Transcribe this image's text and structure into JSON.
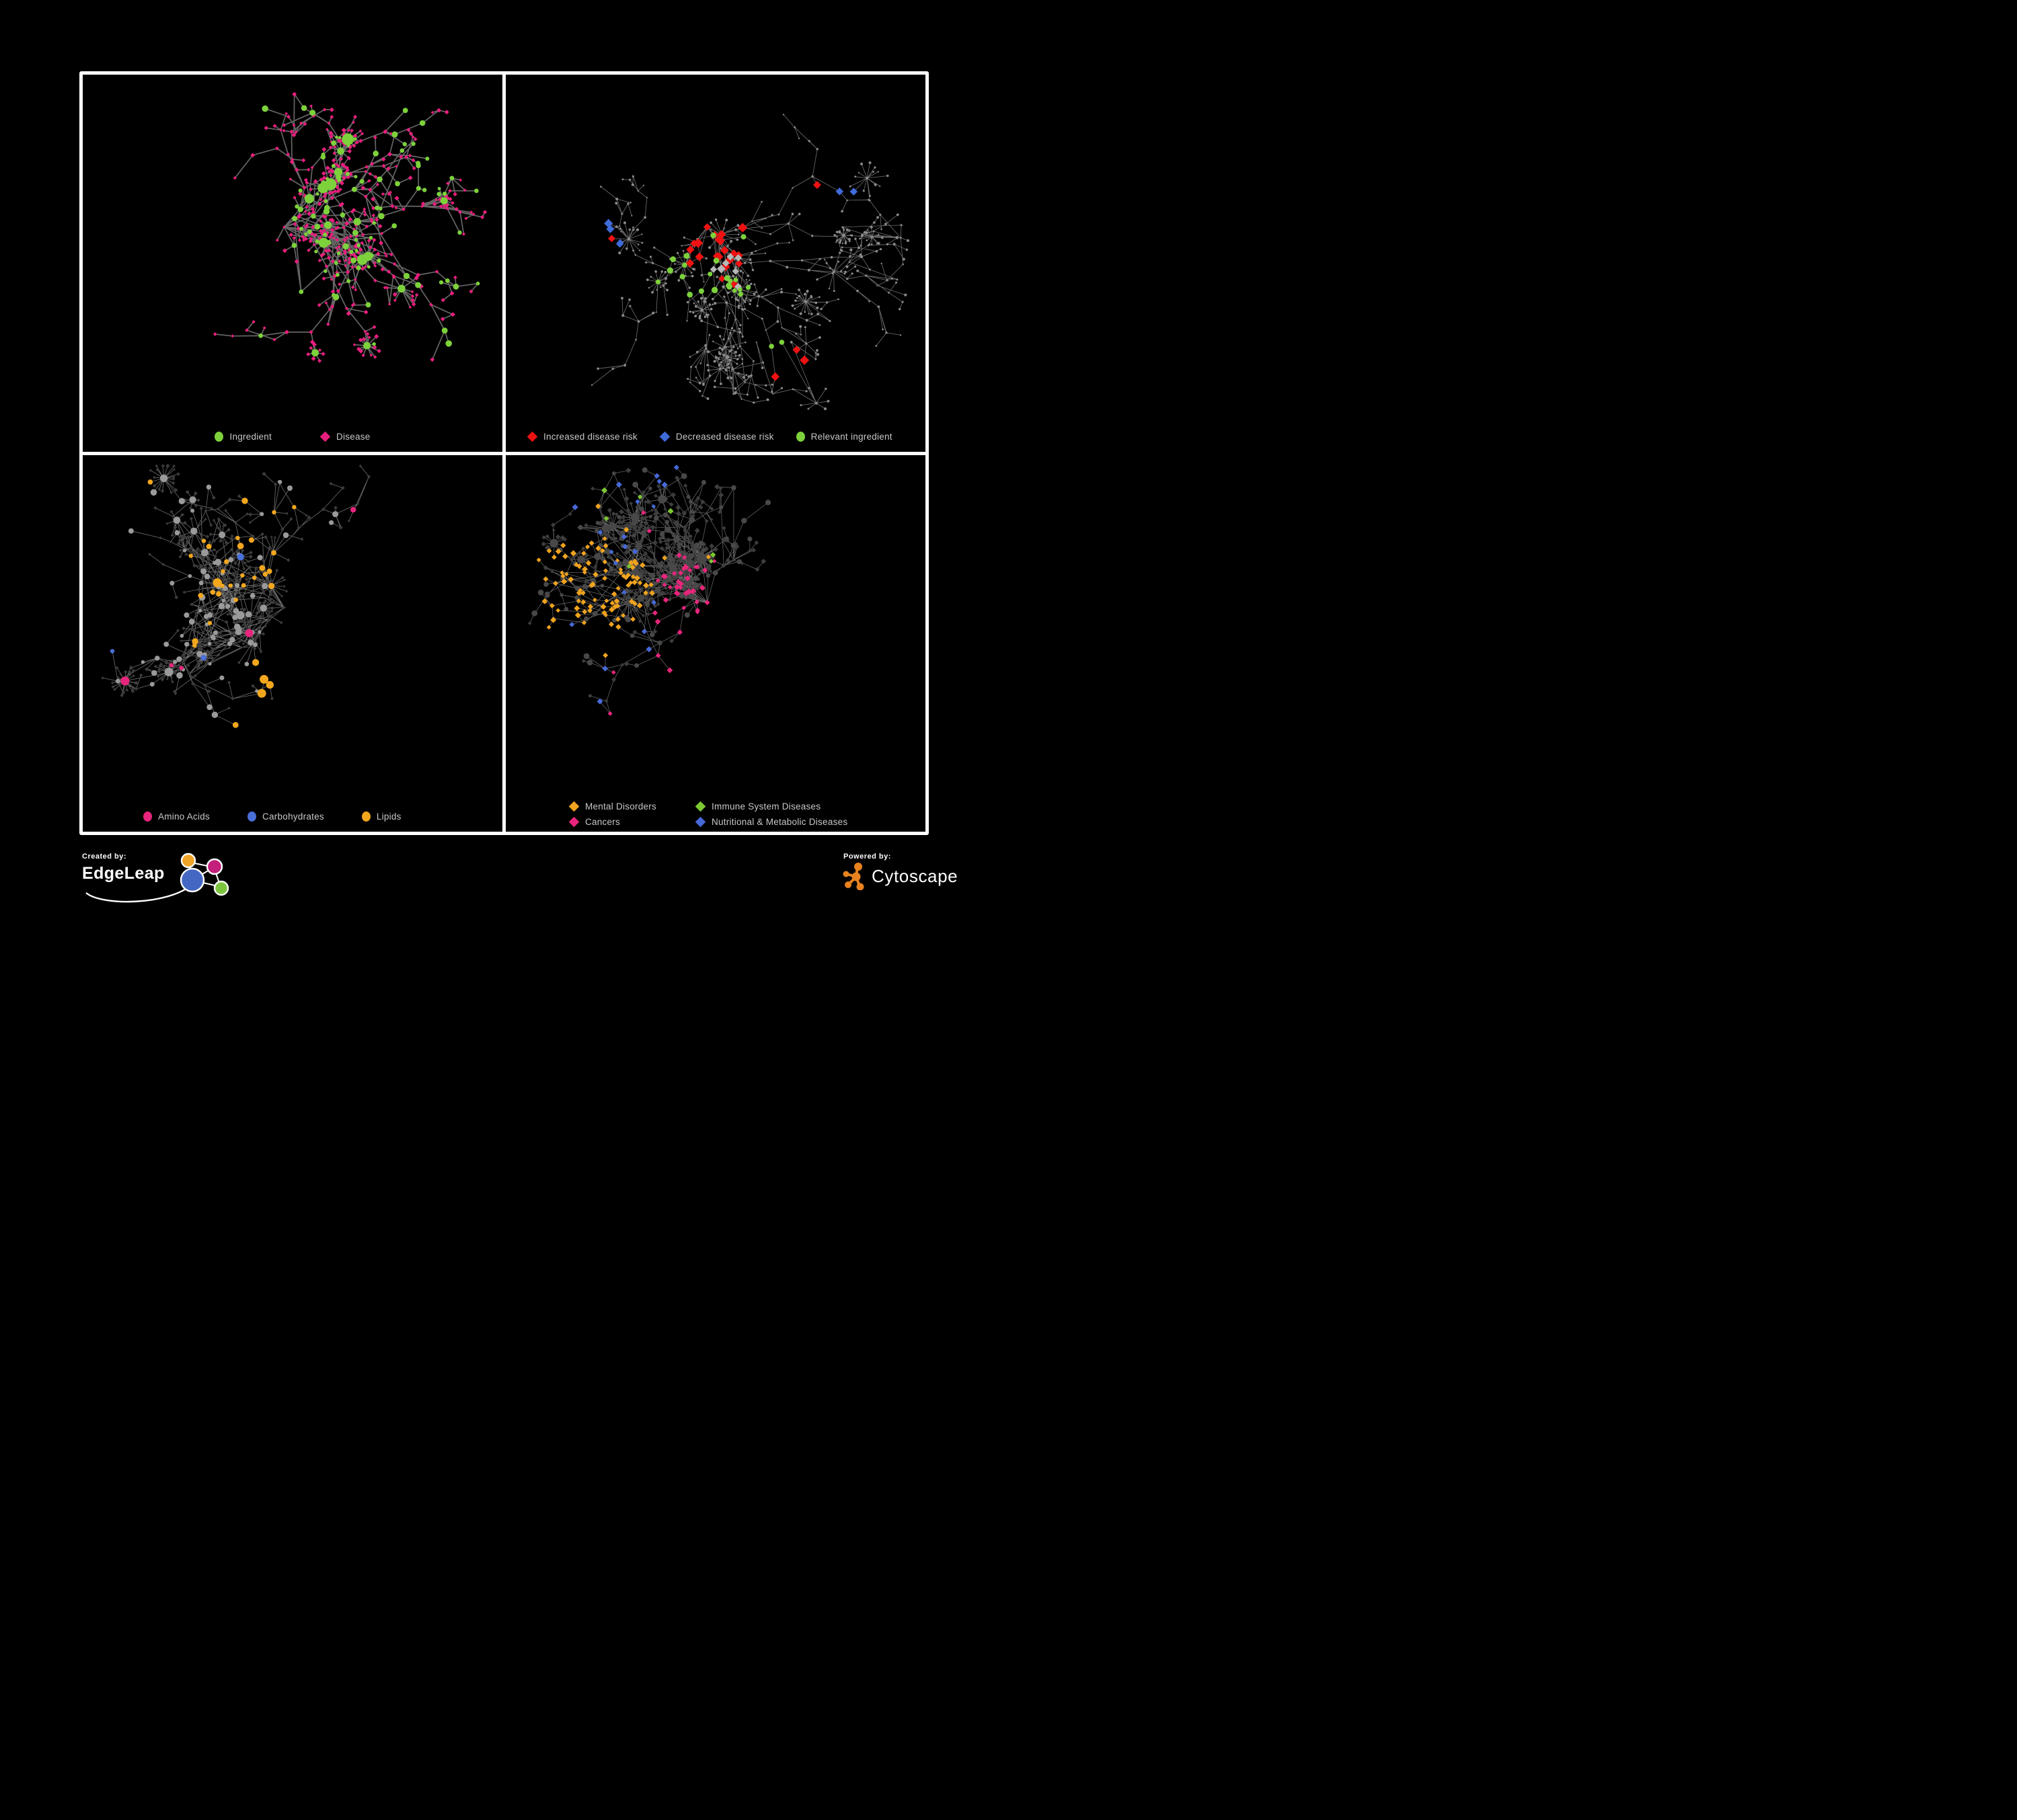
{
  "figure": {
    "background": "#000000",
    "frame_color": "#ffffff",
    "legend_text_color": "#c7c7c7"
  },
  "panels": [
    {
      "id": "ingredient-disease",
      "legend": [
        {
          "label": "Ingredient",
          "shape": "circle",
          "color": "#7dd23b"
        },
        {
          "label": "Disease",
          "shape": "diamond",
          "color": "#e81e7d"
        }
      ],
      "style": {
        "mode": "two-class",
        "edge_color": "#6e6e6e",
        "edge_width": 1.7,
        "edge_opacity": 0.92,
        "ing_color": "#7dd23b",
        "dis_color": "#e81e7d"
      },
      "net": {
        "seed": 7,
        "nodes": 520,
        "hubs": 15,
        "burst": 17,
        "chain_bias": 0.5,
        "cross_links": 0.16
      }
    },
    {
      "id": "disease-risk",
      "legend": [
        {
          "label": "Increased disease risk",
          "shape": "diamond",
          "color": "#ee1212"
        },
        {
          "label": "Decreased disease risk",
          "shape": "diamond",
          "color": "#3f6bd8"
        },
        {
          "label": "Relevant ingredient",
          "shape": "circle",
          "color": "#7dd23b"
        }
      ],
      "style": {
        "mode": "highlight",
        "edge_color": "#7b7b7b",
        "edge_width": 0.8,
        "edge_opacity": 0.9,
        "base_color": "#8b8b8b",
        "risk_up": "#ee1212",
        "risk_down": "#3f6bd8",
        "neutral": "#b7b7b7",
        "ingredient": "#7dd23b",
        "counts": {
          "risk_up": 27,
          "risk_down": 6,
          "neutral": 7,
          "ingredient": 25
        }
      },
      "net": {
        "seed": 29,
        "nodes": 560,
        "hubs": 18,
        "burst": 14,
        "chain_bias": 0.62,
        "cross_links": 0.08
      }
    },
    {
      "id": "nutrients",
      "legend": [
        {
          "label": "Amino Acids",
          "shape": "circle",
          "color": "#e8257c"
        },
        {
          "label": "Carbohydrates",
          "shape": "circle",
          "color": "#4a6fd8"
        },
        {
          "label": "Lipids",
          "shape": "circle",
          "color": "#f3a71d"
        }
      ],
      "style": {
        "mode": "nutrients",
        "edge_color": "#8a8a8a",
        "edge_width": 0.8,
        "edge_opacity": 0.8,
        "circle_base": "#9a9a9a",
        "diamond_base": "#3c3c3c",
        "amino": "#e8257c",
        "carbs": "#4a6fd8",
        "lipids": "#f3a71d"
      },
      "net": {
        "seed": 33,
        "nodes": 560,
        "hubs": 16,
        "burst": 19,
        "chain_bias": 0.52,
        "cross_links": 0.15
      }
    },
    {
      "id": "disease-classes",
      "legend": [
        {
          "label": "Mental Disorders",
          "shape": "diamond",
          "color": "#f0a31e"
        },
        {
          "label": "Immune System Diseases",
          "shape": "diamond",
          "color": "#7cc832"
        },
        {
          "label": "Cancers",
          "shape": "diamond",
          "color": "#e8257c"
        },
        {
          "label": "Nutritional & Metabolic Diseases",
          "shape": "diamond",
          "color": "#4668d8"
        }
      ],
      "style": {
        "mode": "classes",
        "edge_color": "#939393",
        "edge_width": 0.7,
        "edge_opacity": 0.75,
        "diamond_base": "#3d3d3d",
        "circle_base": "#484848",
        "mental": "#f0a31e",
        "immune": "#7cc832",
        "cancers": "#e8257c",
        "nutritional": "#4668d8"
      },
      "net": {
        "seed": 47,
        "nodes": 640,
        "hubs": 18,
        "burst": 17,
        "chain_bias": 0.55,
        "cross_links": 0.12
      }
    }
  ],
  "footer": {
    "created_by_label": "Created by:",
    "created_by_brand": "EdgeLeap",
    "powered_by_label": "Powered by:",
    "powered_by_brand": "Cytoscape",
    "edgeleap_logo_colors": {
      "orange": "#f0a427",
      "magenta": "#c2207a",
      "blue": "#4467c4",
      "green": "#7cc43e"
    },
    "cytoscape_logo_color": "#e8821e"
  }
}
